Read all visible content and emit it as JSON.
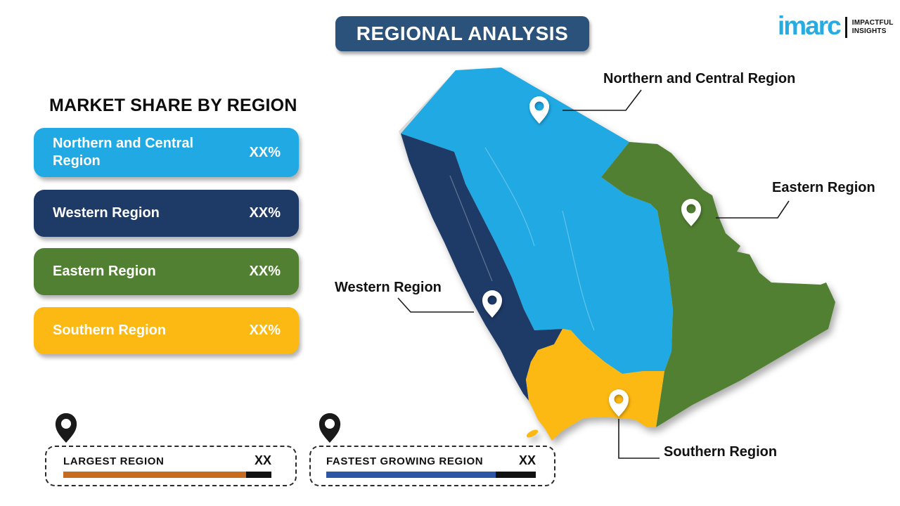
{
  "title": "REGIONAL ANALYSIS",
  "logo": {
    "brand": "imarc",
    "brand_color": "#29ABE2",
    "tagline_line1": "IMPACTFUL",
    "tagline_line2": "INSIGHTS"
  },
  "legend": {
    "heading": "MARKET SHARE BY REGION",
    "items": [
      {
        "label": "Northern and Central Region",
        "value": "XX%",
        "color": "#21A9E3"
      },
      {
        "label": "Western Region",
        "value": "XX%",
        "color": "#1E3A66"
      },
      {
        "label": "Eastern Region",
        "value": "XX%",
        "color": "#518032"
      },
      {
        "label": "Southern Region",
        "value": "XX%",
        "color": "#FCB813"
      }
    ]
  },
  "map": {
    "title_color": "#2A527A",
    "regions": [
      {
        "id": "northern-central",
        "label": "Northern and Central Region",
        "color": "#21A9E3"
      },
      {
        "id": "western",
        "label": "Western Region",
        "color": "#1E3A66"
      },
      {
        "id": "eastern",
        "label": "Eastern Region",
        "color": "#518032"
      },
      {
        "id": "southern",
        "label": "Southern Region",
        "color": "#FCB813"
      }
    ]
  },
  "callouts": [
    {
      "label": "LARGEST REGION",
      "value": "XX",
      "bar_color": "#C76B1E",
      "tail_color": "#111111"
    },
    {
      "label": "FASTEST GROWING REGION",
      "value": "XX",
      "bar_color": "#2D56A5",
      "tail_color": "#111111"
    }
  ],
  "chart_data": {
    "type": "table",
    "title": "MARKET SHARE BY REGION",
    "categories": [
      "Northern and Central Region",
      "Western Region",
      "Eastern Region",
      "Southern Region"
    ],
    "values": [
      "XX%",
      "XX%",
      "XX%",
      "XX%"
    ],
    "annotations": [
      "LARGEST REGION: XX",
      "FASTEST GROWING REGION: XX"
    ]
  }
}
